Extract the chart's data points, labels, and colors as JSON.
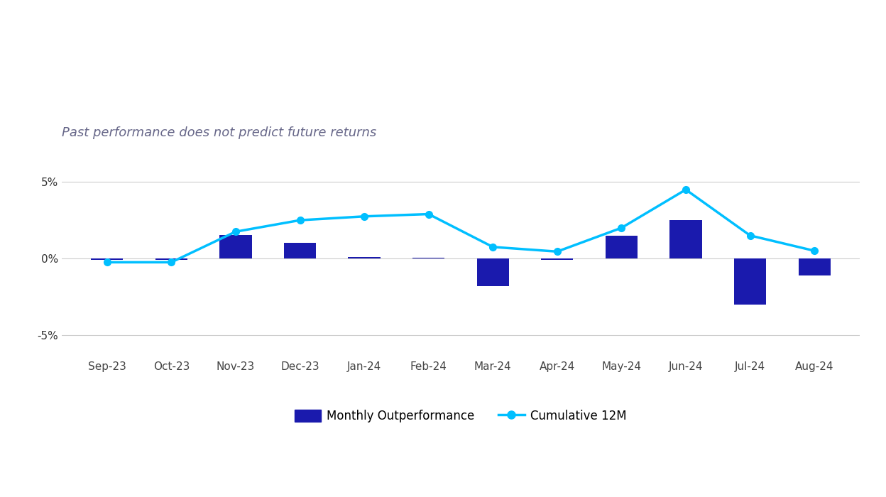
{
  "categories": [
    "Sep-23",
    "Oct-23",
    "Nov-23",
    "Dec-23",
    "Jan-24",
    "Feb-24",
    "Mar-24",
    "Apr-24",
    "May-24",
    "Jun-24",
    "Jul-24",
    "Aug-24"
  ],
  "monthly_outperformance": [
    -0.08,
    -0.08,
    1.55,
    1.0,
    0.1,
    0.05,
    -1.8,
    -0.1,
    1.5,
    2.5,
    -3.0,
    -1.1
  ],
  "cumulative_12m": [
    -0.25,
    -0.25,
    1.75,
    2.5,
    2.75,
    2.9,
    0.75,
    0.45,
    2.0,
    4.5,
    1.5,
    0.5
  ],
  "bar_color": "#1a1aad",
  "line_color": "#00bfff",
  "line_marker": "o",
  "subtitle": "Past performance does not predict future returns",
  "subtitle_fontsize": 13,
  "subtitle_style": "italic",
  "subtitle_color": "#666688",
  "ytick_labels": [
    "-5%",
    "0%",
    "5%"
  ],
  "ytick_values": [
    -5,
    0,
    5
  ],
  "ylim": [
    -6.5,
    6.5
  ],
  "background_color": "#ffffff",
  "legend_bar_label": "Monthly Outperformance",
  "legend_line_label": "Cumulative 12M",
  "bar_width": 0.5,
  "tick_fontsize": 11,
  "grid_color": "#cccccc"
}
